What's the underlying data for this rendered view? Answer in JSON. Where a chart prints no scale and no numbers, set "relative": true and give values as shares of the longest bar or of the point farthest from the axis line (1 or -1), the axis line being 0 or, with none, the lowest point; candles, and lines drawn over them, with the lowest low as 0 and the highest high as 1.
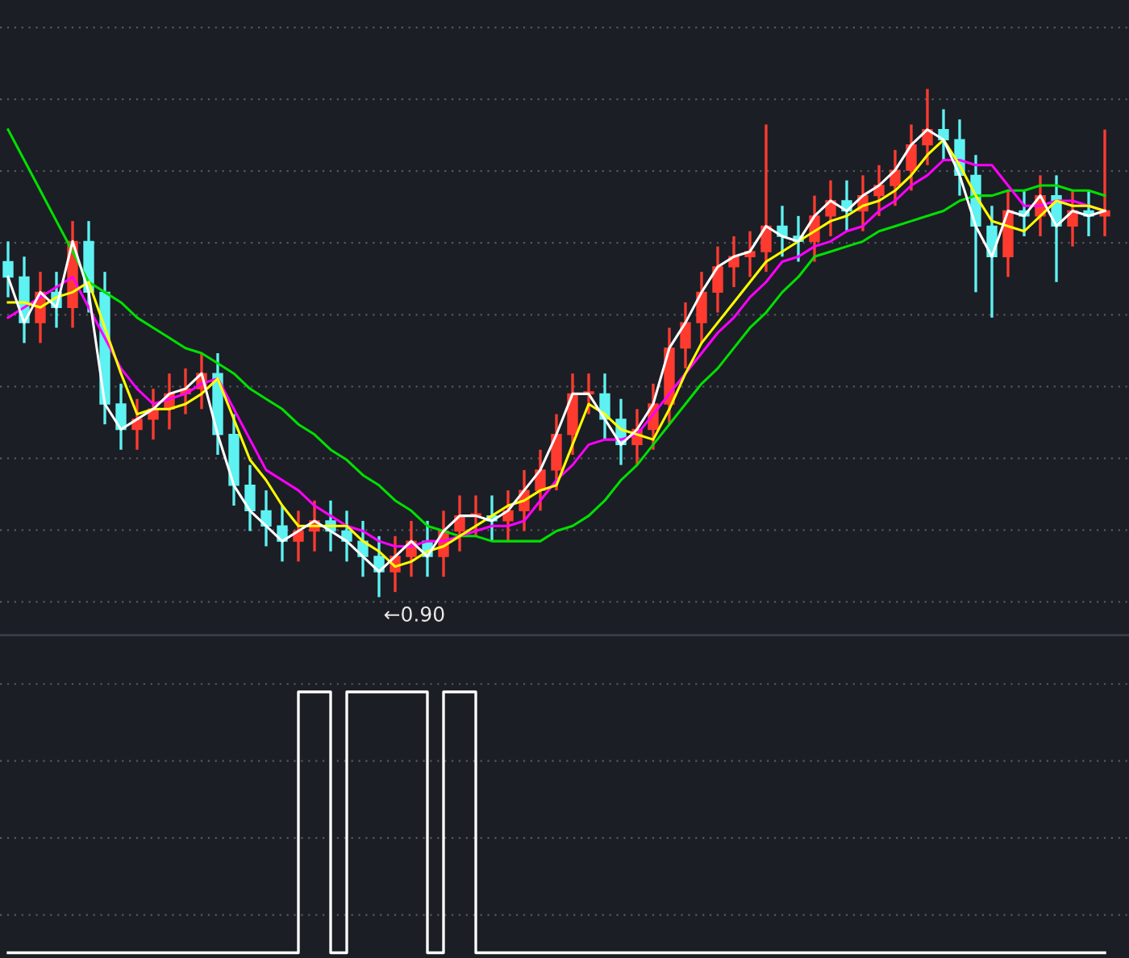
{
  "chart_data": [
    {
      "type": "candlestick",
      "relative": true,
      "grid": "y",
      "annotations": [
        "←0.90"
      ],
      "colors": [
        "#5ef2f2",
        "#5ef2f2",
        "#ff3b30",
        "#5ef2f2",
        "#ff3b30",
        "#5ef2f2",
        "#5ef2f2",
        "#5ef2f2",
        "#ff3b30",
        "#ff3b30",
        "#ff3b30",
        "#ff3b30",
        "#ff3b30",
        "#5ef2f2",
        "#5ef2f2",
        "#5ef2f2",
        "#5ef2f2",
        "#5ef2f2",
        "#ff3b30",
        "#ff3b30",
        "#5ef2f2",
        "#5ef2f2",
        "#5ef2f2",
        "#5ef2f2",
        "#ff3b30",
        "#ff3b30",
        "#5ef2f2",
        "#ff3b30",
        "#ff3b30",
        "#ff3b30",
        "#5ef2f2",
        "#ff3b30",
        "#ff3b30",
        "#ff3b30",
        "#ff3b30",
        "#ff3b30",
        "#ff3b30",
        "#5ef2f2",
        "#5ef2f2",
        "#ff3b30",
        "#ff3b30",
        "#ff3b30",
        "#ff3b30",
        "#ff3b30",
        "#ff3b30",
        "#ff3b30",
        "#ff3b30",
        "#ff3b30",
        "#5ef2f2",
        "#5ef2f2",
        "#ff3b30",
        "#ff3b30",
        "#5ef2f2",
        "#ff3b30",
        "#ff3b30",
        "#ff3b30",
        "#ff3b30",
        "#ff3b30",
        "#5ef2f2",
        "#5ef2f2",
        "#5ef2f2",
        "#5ef2f2",
        "#ff3b30",
        "#5ef2f2",
        "#ff3b30",
        "#5ef2f2",
        "#ff3b30",
        "#5ef2f2",
        "#ff3b30"
      ],
      "categories": [
        null,
        null,
        null,
        null,
        null,
        null,
        null,
        null,
        null,
        null,
        null,
        null,
        null,
        null,
        null,
        null,
        null,
        null,
        null,
        null,
        null,
        null,
        null,
        null,
        null,
        null,
        null,
        null,
        null,
        null,
        null,
        null,
        null,
        null,
        null,
        null,
        null,
        null,
        null,
        null,
        null,
        null,
        null,
        null,
        null,
        null,
        null,
        null,
        null,
        null,
        null,
        null,
        null,
        null,
        null,
        null,
        null,
        null,
        null,
        null,
        null,
        null,
        null,
        null,
        null,
        null,
        null,
        null,
        null
      ],
      "ohlc": [
        [
          0.66,
          0.7,
          0.59,
          0.63
        ],
        [
          0.63,
          0.67,
          0.5,
          0.54
        ],
        [
          0.54,
          0.64,
          0.5,
          0.6
        ],
        [
          0.6,
          0.64,
          0.53,
          0.57
        ],
        [
          0.57,
          0.74,
          0.53,
          0.7
        ],
        [
          0.7,
          0.74,
          0.56,
          0.6
        ],
        [
          0.6,
          0.64,
          0.34,
          0.38
        ],
        [
          0.38,
          0.42,
          0.29,
          0.33
        ],
        [
          0.33,
          0.39,
          0.29,
          0.35
        ],
        [
          0.35,
          0.41,
          0.31,
          0.37
        ],
        [
          0.37,
          0.44,
          0.33,
          0.4
        ],
        [
          0.4,
          0.45,
          0.36,
          0.41
        ],
        [
          0.41,
          0.48,
          0.37,
          0.44
        ],
        [
          0.44,
          0.48,
          0.28,
          0.32
        ],
        [
          0.32,
          0.36,
          0.18,
          0.22
        ],
        [
          0.22,
          0.26,
          0.13,
          0.17
        ],
        [
          0.17,
          0.21,
          0.1,
          0.14
        ],
        [
          0.14,
          0.18,
          0.07,
          0.11
        ],
        [
          0.11,
          0.17,
          0.07,
          0.13
        ],
        [
          0.13,
          0.19,
          0.09,
          0.15
        ],
        [
          0.15,
          0.19,
          0.09,
          0.13
        ],
        [
          0.13,
          0.17,
          0.07,
          0.11
        ],
        [
          0.11,
          0.15,
          0.04,
          0.08
        ],
        [
          0.08,
          0.12,
          0,
          0.05
        ],
        [
          0.05,
          0.12,
          0.01,
          0.08
        ],
        [
          0.08,
          0.15,
          0.04,
          0.11
        ],
        [
          0.11,
          0.15,
          0.04,
          0.08
        ],
        [
          0.08,
          0.17,
          0.04,
          0.13
        ],
        [
          0.13,
          0.2,
          0.09,
          0.16
        ],
        [
          0.16,
          0.2,
          0.12,
          0.16
        ],
        [
          0.16,
          0.2,
          0.11,
          0.15
        ],
        [
          0.15,
          0.21,
          0.11,
          0.17
        ],
        [
          0.17,
          0.25,
          0.13,
          0.21
        ],
        [
          0.21,
          0.29,
          0.17,
          0.25
        ],
        [
          0.25,
          0.36,
          0.21,
          0.32
        ],
        [
          0.32,
          0.44,
          0.28,
          0.4
        ],
        [
          0.4,
          0.44,
          0.36,
          0.4
        ],
        [
          0.4,
          0.44,
          0.31,
          0.35
        ],
        [
          0.35,
          0.39,
          0.26,
          0.3
        ],
        [
          0.3,
          0.37,
          0.26,
          0.33
        ],
        [
          0.33,
          0.42,
          0.29,
          0.38
        ],
        [
          0.38,
          0.53,
          0.34,
          0.49
        ],
        [
          0.49,
          0.58,
          0.45,
          0.54
        ],
        [
          0.54,
          0.64,
          0.5,
          0.6
        ],
        [
          0.6,
          0.69,
          0.56,
          0.65
        ],
        [
          0.65,
          0.71,
          0.61,
          0.67
        ],
        [
          0.67,
          0.72,
          0.63,
          0.68
        ],
        [
          0.68,
          0.93,
          0.64,
          0.73
        ],
        [
          0.73,
          0.77,
          0.67,
          0.71
        ],
        [
          0.71,
          0.75,
          0.66,
          0.7
        ],
        [
          0.7,
          0.79,
          0.66,
          0.75
        ],
        [
          0.75,
          0.82,
          0.71,
          0.78
        ],
        [
          0.78,
          0.82,
          0.72,
          0.76
        ],
        [
          0.76,
          0.83,
          0.72,
          0.79
        ],
        [
          0.79,
          0.85,
          0.75,
          0.81
        ],
        [
          0.81,
          0.88,
          0.77,
          0.84
        ],
        [
          0.84,
          0.93,
          0.8,
          0.89
        ],
        [
          0.89,
          1,
          0.85,
          0.92
        ],
        [
          0.92,
          0.96,
          0.86,
          0.9
        ],
        [
          0.9,
          0.94,
          0.79,
          0.83
        ],
        [
          0.83,
          0.87,
          0.6,
          0.73
        ],
        [
          0.73,
          0.77,
          0.55,
          0.67
        ],
        [
          0.67,
          0.8,
          0.63,
          0.76
        ],
        [
          0.76,
          0.8,
          0.71,
          0.75
        ],
        [
          0.75,
          0.83,
          0.71,
          0.79
        ],
        [
          0.79,
          0.83,
          0.62,
          0.73
        ],
        [
          0.73,
          0.8,
          0.69,
          0.76
        ],
        [
          0.76,
          0.8,
          0.71,
          0.75
        ],
        [
          0.75,
          0.92,
          0.71,
          0.76
        ]
      ],
      "series": [
        {
          "type": "line",
          "color": "#00e000",
          "values": [
            0.92,
            0.86,
            0.8,
            0.74,
            0.68,
            0.62,
            0.6,
            0.58,
            0.55,
            0.53,
            0.51,
            0.49,
            0.48,
            0.46,
            0.44,
            0.41,
            0.39,
            0.37,
            0.34,
            0.32,
            0.29,
            0.27,
            0.24,
            0.22,
            0.19,
            0.17,
            0.14,
            0.13,
            0.12,
            0.12,
            0.11,
            0.11,
            0.11,
            0.11,
            0.13,
            0.14,
            0.16,
            0.19,
            0.23,
            0.26,
            0.3,
            0.34,
            0.38,
            0.42,
            0.45,
            0.49,
            0.53,
            0.56,
            0.6,
            0.63,
            0.67,
            0.68,
            0.69,
            0.7,
            0.72,
            0.73,
            0.74,
            0.75,
            0.76,
            0.78,
            0.79,
            0.79,
            0.8,
            0.8,
            0.81,
            0.81,
            0.8,
            0.8,
            0.79
          ]
        },
        {
          "type": "line",
          "color": "#ff00ff",
          "values": [
            0.55,
            0.57,
            0.59,
            0.61,
            0.63,
            0.57,
            0.51,
            0.45,
            0.41,
            0.38,
            0.39,
            0.4,
            0.42,
            0.43,
            0.37,
            0.31,
            0.25,
            0.23,
            0.21,
            0.18,
            0.16,
            0.14,
            0.13,
            0.11,
            0.1,
            0.1,
            0.11,
            0.11,
            0.12,
            0.13,
            0.14,
            0.14,
            0.15,
            0.19,
            0.23,
            0.26,
            0.3,
            0.31,
            0.31,
            0.32,
            0.36,
            0.4,
            0.44,
            0.48,
            0.52,
            0.55,
            0.59,
            0.62,
            0.66,
            0.67,
            0.69,
            0.7,
            0.72,
            0.73,
            0.76,
            0.78,
            0.81,
            0.83,
            0.86,
            0.86,
            0.85,
            0.85,
            0.81,
            0.77,
            0.77,
            0.78,
            0.78,
            0.77,
            0.76
          ]
        },
        {
          "type": "line",
          "color": "#ffff00",
          "values": [
            0.58,
            0.58,
            0.57,
            0.59,
            0.6,
            0.62,
            0.53,
            0.44,
            0.36,
            0.37,
            0.37,
            0.38,
            0.4,
            0.43,
            0.35,
            0.27,
            0.23,
            0.18,
            0.14,
            0.14,
            0.14,
            0.14,
            0.11,
            0.09,
            0.06,
            0.07,
            0.09,
            0.1,
            0.12,
            0.14,
            0.16,
            0.18,
            0.19,
            0.21,
            0.22,
            0.3,
            0.38,
            0.36,
            0.33,
            0.32,
            0.31,
            0.37,
            0.44,
            0.5,
            0.54,
            0.58,
            0.62,
            0.66,
            0.68,
            0.7,
            0.72,
            0.74,
            0.75,
            0.77,
            0.78,
            0.8,
            0.83,
            0.87,
            0.9,
            0.85,
            0.79,
            0.74,
            0.73,
            0.72,
            0.75,
            0.78,
            0.77,
            0.77,
            0.76
          ]
        },
        {
          "type": "line",
          "color": "#ffffff",
          "values": [
            0.63,
            0.54,
            0.6,
            0.57,
            0.7,
            0.6,
            0.38,
            0.33,
            0.35,
            0.37,
            0.4,
            0.41,
            0.44,
            0.32,
            0.22,
            0.17,
            0.14,
            0.11,
            0.13,
            0.15,
            0.13,
            0.11,
            0.08,
            0.05,
            0.08,
            0.11,
            0.08,
            0.13,
            0.16,
            0.16,
            0.15,
            0.17,
            0.21,
            0.25,
            0.32,
            0.4,
            0.4,
            0.35,
            0.3,
            0.33,
            0.38,
            0.49,
            0.54,
            0.6,
            0.65,
            0.67,
            0.68,
            0.73,
            0.71,
            0.7,
            0.75,
            0.78,
            0.76,
            0.79,
            0.81,
            0.84,
            0.89,
            0.92,
            0.9,
            0.83,
            0.73,
            0.67,
            0.76,
            0.75,
            0.79,
            0.73,
            0.76,
            0.75,
            0.76
          ]
        }
      ]
    },
    {
      "type": "step",
      "relative": true,
      "grid": "y",
      "categories": [
        null,
        null,
        null,
        null,
        null,
        null,
        null,
        null,
        null,
        null,
        null,
        null,
        null,
        null,
        null,
        null,
        null,
        null,
        null,
        null,
        null,
        null,
        null,
        null,
        null,
        null,
        null,
        null,
        null,
        null,
        null,
        null,
        null,
        null,
        null,
        null,
        null,
        null,
        null,
        null,
        null,
        null,
        null,
        null,
        null,
        null,
        null,
        null,
        null,
        null,
        null,
        null,
        null,
        null,
        null,
        null,
        null,
        null,
        null,
        null,
        null,
        null,
        null,
        null,
        null,
        null,
        null,
        null,
        null
      ],
      "series": [
        {
          "color": "#ffffff",
          "values": [
            0,
            0,
            0,
            0,
            0,
            0,
            0,
            0,
            0,
            0,
            0,
            0,
            0,
            0,
            0,
            0,
            0,
            0,
            1,
            1,
            0,
            1,
            1,
            1,
            1,
            1,
            0,
            1,
            1,
            0,
            0,
            0,
            0,
            0,
            0,
            0,
            0,
            0,
            0,
            0,
            0,
            0,
            0,
            0,
            0,
            0,
            0,
            0,
            0,
            0,
            0,
            0,
            0,
            0,
            0,
            0,
            0,
            0,
            0,
            0,
            0,
            0,
            0,
            0,
            0,
            0,
            0,
            0,
            0
          ]
        }
      ]
    }
  ]
}
